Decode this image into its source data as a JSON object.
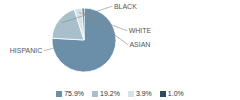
{
  "chart_data": {
    "type": "pie",
    "categories": [
      "HISPANIC",
      "BLACK",
      "WHITE",
      "ASIAN"
    ],
    "values": [
      75.9,
      19.2,
      3.9,
      1.0
    ],
    "value_labels": [
      "75.9%",
      "19.2%",
      "3.9%",
      "1.0%"
    ],
    "colors": [
      "#6b8fa8",
      "#a8bfcc",
      "#d4e2ea",
      "#2e4a5e"
    ],
    "legend": "bottom"
  }
}
